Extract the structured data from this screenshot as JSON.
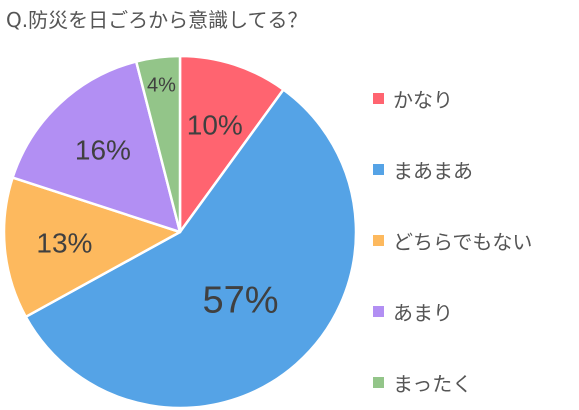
{
  "chart_data": {
    "type": "pie",
    "title": "Q.防災を日ごろから意識してる？",
    "categories": [
      "かなり",
      "まあまあ",
      "どちらでもない",
      "あまり",
      "まったく"
    ],
    "values": [
      10,
      57,
      13,
      16,
      4
    ],
    "value_labels": [
      "10%",
      "57%",
      "13%",
      "16%",
      "4%"
    ],
    "colors": [
      "#ff6470",
      "#55a3e6",
      "#fdb95e",
      "#b28ff3",
      "#93c589"
    ],
    "legend_position": "right",
    "start": "top",
    "direction": "clockwise"
  }
}
